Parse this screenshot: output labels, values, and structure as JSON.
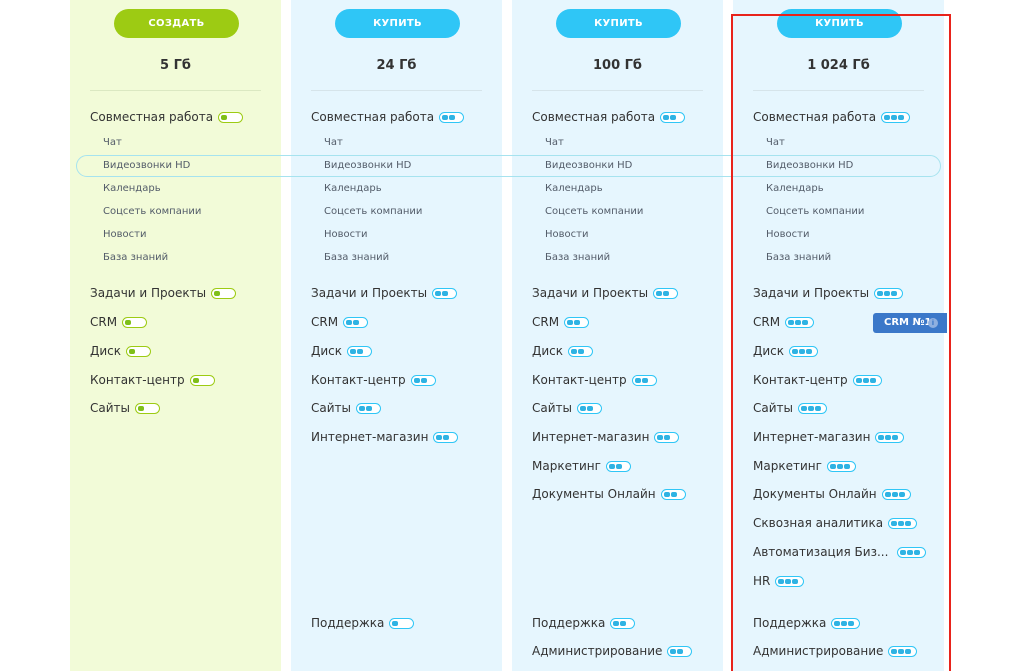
{
  "columns": [
    {
      "button_label": "СОЗДАТЬ",
      "size": "5 Гб",
      "collaboration": "Совместная работа",
      "sub_items": [
        "Чат",
        "Видеозвонки HD",
        "Календарь",
        "Соцсеть компании",
        "Новости",
        "База знаний"
      ],
      "features": [
        "Задачи и Проекты",
        "CRM",
        "Диск",
        "Контакт-центр",
        "Сайты"
      ],
      "bottom": []
    },
    {
      "button_label": "КУПИТЬ",
      "size": "24 Гб",
      "collaboration": "Совместная работа",
      "sub_items": [
        "Чат",
        "Видеозвонки HD",
        "Календарь",
        "Соцсеть компании",
        "Новости",
        "База знаний"
      ],
      "features": [
        "Задачи и Проекты",
        "CRM",
        "Диск",
        "Контакт-центр",
        "Сайты",
        "Интернет-магазин"
      ],
      "bottom": [
        "Поддержка"
      ]
    },
    {
      "button_label": "КУПИТЬ",
      "size": "100 Гб",
      "collaboration": "Совместная работа",
      "sub_items": [
        "Чат",
        "Видеозвонки HD",
        "Календарь",
        "Соцсеть компании",
        "Новости",
        "База знаний"
      ],
      "features": [
        "Задачи и Проекты",
        "CRM",
        "Диск",
        "Контакт-центр",
        "Сайты",
        "Интернет-магазин",
        "Маркетинг",
        "Документы Онлайн"
      ],
      "bottom": [
        "Поддержка",
        "Администрирование"
      ]
    },
    {
      "button_label": "КУПИТЬ",
      "size": "1 024 Гб",
      "collaboration": "Совместная работа",
      "sub_items": [
        "Чат",
        "Видеозвонки HD",
        "Календарь",
        "Соцсеть компании",
        "Новости",
        "База знаний"
      ],
      "features": [
        "Задачи и Проекты",
        "CRM",
        "Диск",
        "Контакт-центр",
        "Сайты",
        "Интернет-магазин",
        "Маркетинг",
        "Документы Онлайн",
        "Сквозная аналитика",
        "Автоматизация Биз...",
        "HR"
      ],
      "bottom": [
        "Поддержка",
        "Администрирование"
      ]
    }
  ],
  "crm_badge": {
    "label": "CRM №1",
    "info_icon": "info-icon"
  },
  "colors": {
    "green": "#9dcb13",
    "blue": "#2fc6f6",
    "highlight_border": "#e8231b"
  }
}
